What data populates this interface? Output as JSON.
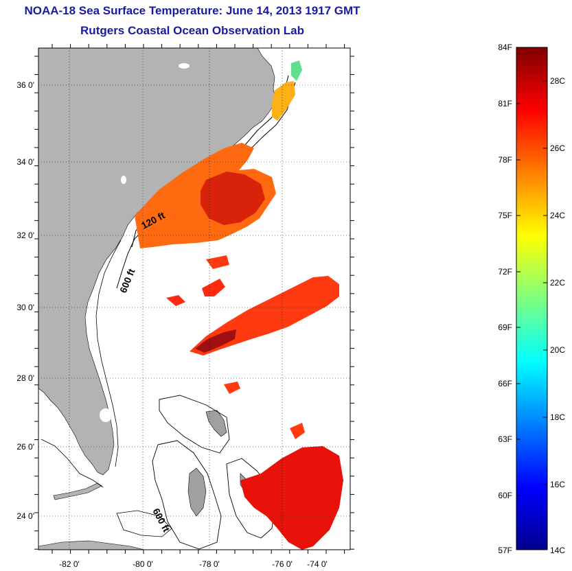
{
  "title": "NOAA-18 Sea Surface Temperature:  June 14, 2013 1917 GMT",
  "subtitle": "Rutgers Coastal Ocean Observation Lab",
  "map": {
    "x_ticks": [
      "-82 0'",
      "-80 0'",
      "-78 0'",
      "-76 0'",
      "-74 0'"
    ],
    "y_ticks": [
      "36 0'",
      "34 0'",
      "32 0'",
      "30 0'",
      "28 0'",
      "26 0'",
      "24 0'"
    ],
    "contour_labels": [
      "120 ft",
      "600 ft",
      "600 ft"
    ],
    "land_color": "#b3b3b3"
  },
  "colorbar": {
    "fahrenheit_labels": [
      "84F",
      "81F",
      "78F",
      "75F",
      "72F",
      "69F",
      "66F",
      "63F",
      "60F",
      "57F"
    ],
    "celsius_labels": [
      "28C",
      "26C",
      "24C",
      "22C",
      "20C",
      "18C",
      "16C",
      "14C"
    ],
    "colormap": "jet"
  }
}
